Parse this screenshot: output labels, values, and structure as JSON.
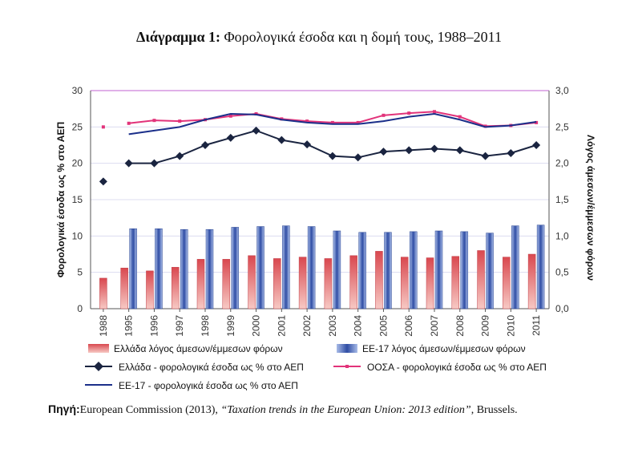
{
  "title": {
    "label": "Διάγραμμα 1:",
    "text": "Φορολογικά έσοδα και η δομή τους, 1988–2011"
  },
  "source": {
    "label": "Πηγή:",
    "pre": "European Commission (2013), ",
    "ref": "“Taxation trends in the European Union: 2013 edition”",
    "post": ", Brussels."
  },
  "colors": {
    "greece_bar": "#e0636a",
    "eu_bar": "#3f5fb0",
    "greece_line": "#1a2440",
    "oecd_line": "#e2337a",
    "eu_line": "#1b2f8a",
    "grid_top": "#c060d0",
    "grid": "#dcdcf0"
  },
  "chart_data": {
    "type": "bar+line",
    "categories": [
      "1988",
      "1995",
      "1996",
      "1997",
      "1998",
      "1999",
      "2000",
      "2001",
      "2002",
      "2003",
      "2004",
      "2005",
      "2006",
      "2007",
      "2008",
      "2009",
      "2010",
      "2011"
    ],
    "ylabel_left": "Φορολογικά έσοδα ως % στο ΑΕΠ",
    "ylabel_right": "Λόγος άμεσων/έμμεσων φόρων",
    "ylim_left": [
      0,
      30
    ],
    "yticks_left": [
      "0",
      "5",
      "10",
      "15",
      "20",
      "25",
      "30"
    ],
    "ylim_right": [
      0,
      3
    ],
    "yticks_right": [
      "0,0",
      "0,5",
      "1,0",
      "1,5",
      "2,0",
      "2,5",
      "3,0"
    ],
    "grid": true,
    "legend_position": "bottom",
    "series": [
      {
        "name": "Ελλάδα λόγος άμεσων/έμμεσων φόρων",
        "kind": "bar",
        "axis": "right",
        "color": "#e0636a",
        "values": [
          0.42,
          0.56,
          0.52,
          0.57,
          0.68,
          0.68,
          0.73,
          0.69,
          0.71,
          0.69,
          0.73,
          0.79,
          0.71,
          0.7,
          0.72,
          0.8,
          0.71,
          0.75
        ]
      },
      {
        "name": "ΕΕ-17 λόγος άμεσων/έμμεσων φόρων",
        "kind": "bar",
        "axis": "right",
        "color": "#3f5fb0",
        "values": [
          null,
          1.1,
          1.1,
          1.09,
          1.09,
          1.12,
          1.13,
          1.14,
          1.13,
          1.07,
          1.05,
          1.05,
          1.06,
          1.07,
          1.06,
          1.04,
          1.14,
          1.15
        ]
      },
      {
        "name": "Ελλάδα - φορολογικά έσοδα ως % στο ΑΕΠ",
        "kind": "line",
        "marker": "diamond",
        "axis": "left",
        "color": "#1a2440",
        "values": [
          17.5,
          20.0,
          20.0,
          21.0,
          22.5,
          23.5,
          24.5,
          23.2,
          22.6,
          21.0,
          20.8,
          21.6,
          21.8,
          22.0,
          21.8,
          21.0,
          21.4,
          22.5
        ]
      },
      {
        "name": "ΟΟΣΑ - φορολογικά έσοδα ως % στο ΑΕΠ",
        "kind": "line",
        "marker": "dot",
        "axis": "left",
        "color": "#e2337a",
        "values": [
          25.0,
          25.5,
          25.9,
          25.8,
          26.0,
          26.5,
          26.8,
          26.1,
          25.8,
          25.6,
          25.6,
          26.6,
          26.9,
          27.1,
          26.4,
          25.1,
          25.2,
          25.6
        ]
      },
      {
        "name": "ΕΕ-17 - φορολογικά έσοδα ως % στο ΑΕΠ",
        "kind": "line",
        "marker": "none",
        "axis": "left",
        "color": "#1b2f8a",
        "values": [
          null,
          24.0,
          24.5,
          25.0,
          26.0,
          26.8,
          26.7,
          26.0,
          25.6,
          25.4,
          25.4,
          25.8,
          26.4,
          26.8,
          26.0,
          25.0,
          25.2,
          25.7
        ]
      }
    ]
  }
}
